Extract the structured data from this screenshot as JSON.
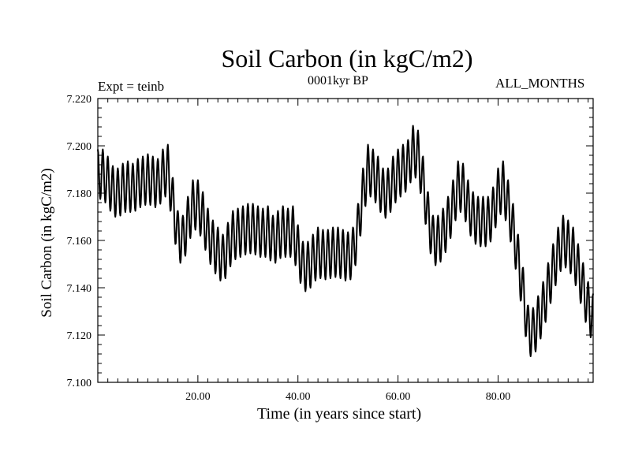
{
  "chart_data": {
    "type": "line",
    "title": "Soil Carbon (in kgC/m2)",
    "subtitle": "0001kyr BP",
    "left_annotation": "Expt = teinb",
    "right_annotation": "ALL_MONTHS",
    "xlabel": "Time (in years since start)",
    "ylabel": "Soil Carbon (in kgC/m2)",
    "xlim": [
      0,
      99
    ],
    "ylim": [
      7.1,
      7.22
    ],
    "xticks": [
      20,
      40,
      60,
      80
    ],
    "xtick_labels": [
      "20.00",
      "40.00",
      "60.00",
      "80.00"
    ],
    "yticks": [
      7.1,
      7.12,
      7.14,
      7.16,
      7.18,
      7.2,
      7.22
    ],
    "ytick_labels": [
      "7.100",
      "7.120",
      "7.140",
      "7.160",
      "7.180",
      "7.200",
      "7.220"
    ],
    "grid": false,
    "series": [
      {
        "name": "Soil Carbon",
        "color": "#000000",
        "seasonal_amplitude": 0.0105,
        "x": [
          0,
          1,
          2,
          3,
          4,
          5,
          6,
          7,
          8,
          9,
          10,
          11,
          12,
          13,
          14,
          15,
          16,
          17,
          18,
          19,
          20,
          21,
          22,
          23,
          24,
          25,
          26,
          27,
          28,
          29,
          30,
          31,
          32,
          33,
          34,
          35,
          36,
          37,
          38,
          39,
          40,
          41,
          42,
          43,
          44,
          45,
          46,
          47,
          48,
          49,
          50,
          51,
          52,
          53,
          54,
          55,
          56,
          57,
          58,
          59,
          60,
          61,
          62,
          63,
          64,
          65,
          66,
          67,
          68,
          69,
          70,
          71,
          72,
          73,
          74,
          75,
          76,
          77,
          78,
          79,
          80,
          81,
          82,
          83,
          84,
          85,
          86,
          87,
          88,
          89,
          90,
          91,
          92,
          93,
          94,
          95,
          96,
          97,
          98,
          99
        ],
        "y": [
          7.188,
          7.188,
          7.185,
          7.181,
          7.18,
          7.182,
          7.183,
          7.182,
          7.184,
          7.185,
          7.186,
          7.185,
          7.184,
          7.188,
          7.19,
          7.176,
          7.162,
          7.16,
          7.168,
          7.175,
          7.175,
          7.17,
          7.163,
          7.158,
          7.155,
          7.152,
          7.157,
          7.162,
          7.163,
          7.164,
          7.165,
          7.165,
          7.164,
          7.163,
          7.164,
          7.16,
          7.162,
          7.164,
          7.163,
          7.164,
          7.156,
          7.149,
          7.149,
          7.152,
          7.155,
          7.154,
          7.154,
          7.155,
          7.155,
          7.154,
          7.153,
          7.155,
          7.165,
          7.18,
          7.19,
          7.188,
          7.185,
          7.18,
          7.18,
          7.185,
          7.188,
          7.19,
          7.192,
          7.198,
          7.196,
          7.185,
          7.17,
          7.16,
          7.16,
          7.163,
          7.168,
          7.175,
          7.183,
          7.182,
          7.175,
          7.17,
          7.168,
          7.168,
          7.168,
          7.172,
          7.18,
          7.183,
          7.175,
          7.165,
          7.152,
          7.138,
          7.122,
          7.121,
          7.126,
          7.132,
          7.14,
          7.148,
          7.155,
          7.16,
          7.158,
          7.155,
          7.148,
          7.14,
          7.132,
          7.127
        ]
      }
    ]
  }
}
